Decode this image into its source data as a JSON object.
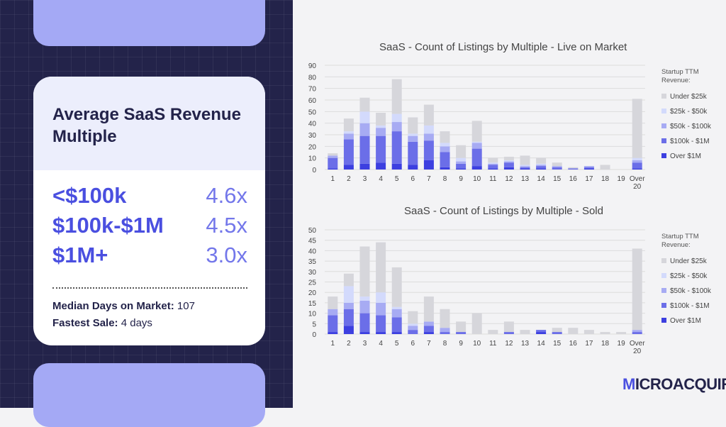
{
  "card": {
    "title": "Average SaaS Revenue Multiple",
    "rows": [
      {
        "label": "<$100k",
        "value": "4.6x"
      },
      {
        "label": "$100k-$1M",
        "value": "4.5x"
      },
      {
        "label": "$1M+",
        "value": "3.0x"
      }
    ],
    "median_label": "Median Days on Market:",
    "median_value": "107",
    "fastest_label": "Fastest Sale:",
    "fastest_value": "4 days"
  },
  "brand": {
    "m": "M",
    "rest": "ICROACQUIRE"
  },
  "colors": {
    "Under $25k": "#d6d6db",
    "$25k - $50k": "#d3dafc",
    "$50k - $100k": "#a7abf3",
    "$100k - $1M": "#6b6ee8",
    "Over $1M": "#3c3fe0"
  },
  "chart_data": [
    {
      "type": "bar",
      "stacked": true,
      "title": "SaaS  -  Count of Listings by Multiple - Live on Market",
      "categories": [
        "1",
        "2",
        "3",
        "4",
        "5",
        "6",
        "7",
        "8",
        "9",
        "10",
        "11",
        "12",
        "13",
        "14",
        "15",
        "16",
        "17",
        "18",
        "19",
        "Over 20"
      ],
      "ylim": [
        0,
        90
      ],
      "yticks": [
        0,
        10,
        20,
        30,
        40,
        50,
        60,
        70,
        80,
        90
      ],
      "legend_title": "Startup TTM Revenue:",
      "legend_position": "right",
      "series": [
        {
          "name": "Over $1M",
          "values": [
            1,
            4,
            5,
            6,
            5,
            4,
            8,
            2,
            1,
            3,
            1,
            2,
            1,
            1,
            0,
            0,
            1,
            0,
            0,
            1
          ]
        },
        {
          "name": "$100k - $1M",
          "values": [
            9,
            22,
            24,
            23,
            28,
            20,
            17,
            13,
            4,
            15,
            3,
            4,
            1,
            2,
            2,
            1,
            1,
            0,
            0,
            5
          ]
        },
        {
          "name": "$50k - $100k",
          "values": [
            2,
            5,
            11,
            7,
            8,
            5,
            6,
            5,
            2,
            5,
            1,
            1,
            1,
            1,
            1,
            0,
            1,
            0,
            0,
            2
          ]
        },
        {
          "name": "$25k - $50k",
          "values": [
            0,
            2,
            10,
            2,
            7,
            2,
            7,
            3,
            3,
            1,
            1,
            1,
            1,
            1,
            0,
            0,
            0,
            0,
            0,
            2
          ]
        },
        {
          "name": "Under $25k",
          "values": [
            2,
            11,
            12,
            11,
            30,
            14,
            18,
            10,
            11,
            18,
            4,
            3,
            8,
            5,
            3,
            1,
            0,
            4,
            0,
            51
          ]
        }
      ]
    },
    {
      "type": "bar",
      "stacked": true,
      "title": "SaaS  -  Count of Listings by Multiple - Sold",
      "categories": [
        "1",
        "2",
        "3",
        "4",
        "5",
        "6",
        "7",
        "8",
        "9",
        "10",
        "11",
        "12",
        "13",
        "14",
        "15",
        "16",
        "17",
        "18",
        "19",
        "Over 20"
      ],
      "ylim": [
        0,
        50
      ],
      "yticks": [
        0,
        5,
        10,
        15,
        20,
        25,
        30,
        35,
        40,
        45,
        50
      ],
      "legend_title": "Startup TTM Revenue:",
      "legend_position": "right",
      "series": [
        {
          "name": "Over $1M",
          "values": [
            1,
            4,
            1,
            1,
            1,
            0,
            1,
            0,
            0,
            0,
            0,
            0,
            0,
            1,
            0,
            0,
            0,
            0,
            0,
            0
          ]
        },
        {
          "name": "$100k - $1M",
          "values": [
            8,
            8,
            9,
            8,
            7,
            2,
            3,
            1,
            1,
            0,
            0,
            1,
            0,
            1,
            1,
            0,
            0,
            0,
            0,
            1
          ]
        },
        {
          "name": "$50k - $100k",
          "values": [
            3,
            3,
            6,
            6,
            4,
            2,
            2,
            2,
            0,
            0,
            0,
            0,
            0,
            0,
            0,
            0,
            0,
            0,
            0,
            1
          ]
        },
        {
          "name": "$25k - $50k",
          "values": [
            0,
            8,
            2,
            5,
            1,
            1,
            0,
            0,
            0,
            0,
            0,
            0,
            0,
            0,
            0,
            0,
            0,
            0,
            0,
            0
          ]
        },
        {
          "name": "Under $25k",
          "values": [
            6,
            6,
            24,
            24,
            19,
            6,
            12,
            9,
            5,
            10,
            2,
            5,
            2,
            0,
            2,
            3,
            2,
            1,
            1,
            39
          ]
        }
      ]
    }
  ]
}
